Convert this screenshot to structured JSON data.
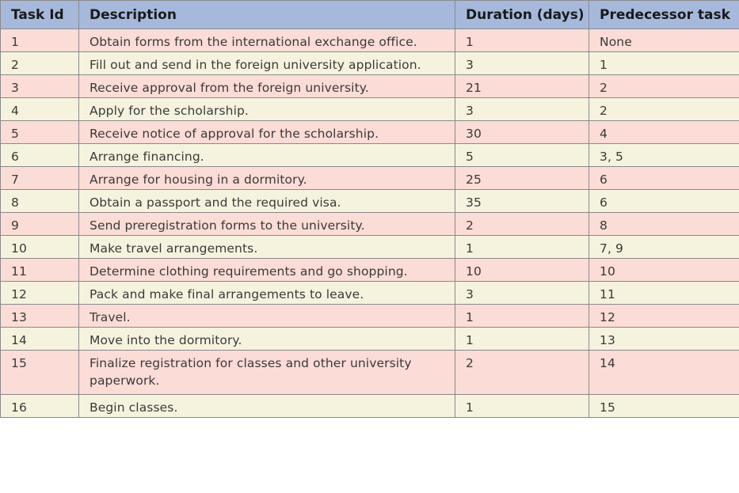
{
  "table": {
    "headers": {
      "task_id": "Task Id",
      "description": "Description",
      "duration": "Duration (days)",
      "predecessor": "Predecessor task"
    },
    "rows": [
      {
        "id": "1",
        "description": "Obtain forms from the international exchange office.",
        "duration": "1",
        "predecessor": "None"
      },
      {
        "id": "2",
        "description": "Fill out and send in the foreign university application.",
        "duration": "3",
        "predecessor": "1"
      },
      {
        "id": "3",
        "description": "Receive approval from the foreign university.",
        "duration": "21",
        "predecessor": "2"
      },
      {
        "id": "4",
        "description": "Apply for the scholarship.",
        "duration": "3",
        "predecessor": "2"
      },
      {
        "id": "5",
        "description": "Receive notice of approval for the scholarship.",
        "duration": "30",
        "predecessor": "4"
      },
      {
        "id": "6",
        "description": "Arrange financing.",
        "duration": "5",
        "predecessor": "3, 5"
      },
      {
        "id": "7",
        "description": "Arrange for housing in a dormitory.",
        "duration": "25",
        "predecessor": "6"
      },
      {
        "id": "8",
        "description": "Obtain a passport and the required visa.",
        "duration": "35",
        "predecessor": "6"
      },
      {
        "id": "9",
        "description": "Send preregistration forms to the university.",
        "duration": "2",
        "predecessor": "8"
      },
      {
        "id": "10",
        "description": "Make travel arrangements.",
        "duration": "1",
        "predecessor": "7, 9"
      },
      {
        "id": "11",
        "description": "Determine clothing requirements and go shopping.",
        "duration": "10",
        "predecessor": "10"
      },
      {
        "id": "12",
        "description": "Pack and make final arrangements to leave.",
        "duration": "3",
        "predecessor": "11"
      },
      {
        "id": "13",
        "description": "Travel.",
        "duration": "1",
        "predecessor": "12"
      },
      {
        "id": "14",
        "description": "Move into the dormitory.",
        "duration": "1",
        "predecessor": "13"
      },
      {
        "id": "15",
        "description": "Finalize registration for classes and other university paperwork.",
        "duration": "2",
        "predecessor": "14"
      },
      {
        "id": "16",
        "description": "Begin classes.",
        "duration": "1",
        "predecessor": "15"
      }
    ]
  },
  "colors": {
    "header_bg": "#a6b8dc",
    "row_odd_bg": "#fbdcd6",
    "row_even_bg": "#f5f3de",
    "border": "#8a8a8a"
  }
}
